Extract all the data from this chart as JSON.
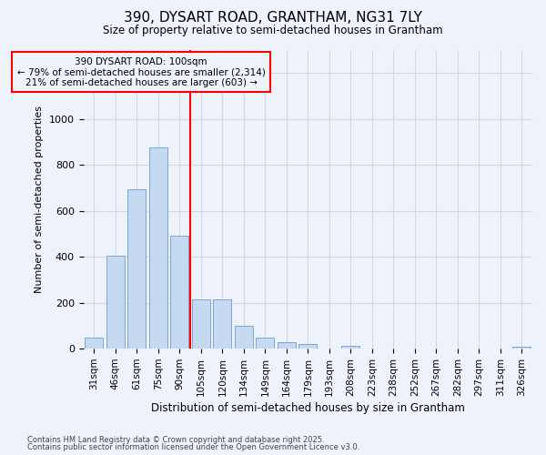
{
  "title_line1": "390, DYSART ROAD, GRANTHAM, NG31 7LY",
  "title_line2": "Size of property relative to semi-detached houses in Grantham",
  "xlabel": "Distribution of semi-detached houses by size in Grantham",
  "ylabel": "Number of semi-detached properties",
  "categories": [
    "31sqm",
    "46sqm",
    "61sqm",
    "75sqm",
    "90sqm",
    "105sqm",
    "120sqm",
    "134sqm",
    "149sqm",
    "164sqm",
    "179sqm",
    "193sqm",
    "208sqm",
    "223sqm",
    "238sqm",
    "252sqm",
    "267sqm",
    "282sqm",
    "297sqm",
    "311sqm",
    "326sqm"
  ],
  "values": [
    47,
    403,
    693,
    878,
    490,
    213,
    213,
    98,
    47,
    30,
    20,
    0,
    13,
    0,
    0,
    0,
    0,
    0,
    0,
    0,
    10
  ],
  "bar_color": "#c5d9f1",
  "bar_edge_color": "#7ba7d4",
  "grid_color": "#d0d8e8",
  "vline_x": 4.5,
  "vline_color": "red",
  "annotation_title": "390 DYSART ROAD: 100sqm",
  "annotation_line2": "← 79% of semi-detached houses are smaller (2,314)",
  "annotation_line3": "21% of semi-detached houses are larger (603) →",
  "annotation_box_color": "red",
  "annotation_text_color": "black",
  "footnote1": "Contains HM Land Registry data © Crown copyright and database right 2025.",
  "footnote2": "Contains public sector information licensed under the Open Government Licence v3.0.",
  "ylim": [
    0,
    1300
  ],
  "background_color": "#eef2fb"
}
